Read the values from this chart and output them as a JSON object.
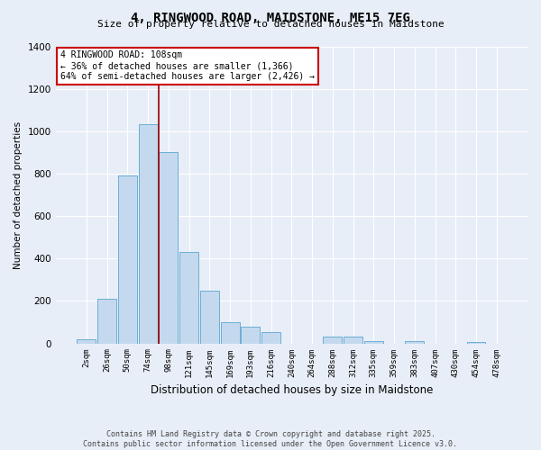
{
  "title": "4, RINGWOOD ROAD, MAIDSTONE, ME15 7EG",
  "subtitle": "Size of property relative to detached houses in Maidstone",
  "xlabel": "Distribution of detached houses by size in Maidstone",
  "ylabel": "Number of detached properties",
  "bar_color": "#c5d9ee",
  "bar_edge_color": "#6aaed6",
  "background_color": "#e8eef7",
  "grid_color": "#ffffff",
  "categories": [
    "2sqm",
    "26sqm",
    "50sqm",
    "74sqm",
    "98sqm",
    "121sqm",
    "145sqm",
    "169sqm",
    "193sqm",
    "216sqm",
    "240sqm",
    "264sqm",
    "288sqm",
    "312sqm",
    "335sqm",
    "359sqm",
    "383sqm",
    "407sqm",
    "430sqm",
    "454sqm",
    "478sqm"
  ],
  "values": [
    20,
    210,
    790,
    1035,
    900,
    430,
    250,
    100,
    80,
    55,
    0,
    0,
    30,
    30,
    10,
    0,
    10,
    0,
    0,
    5,
    0
  ],
  "ylim": [
    0,
    1400
  ],
  "yticks": [
    0,
    200,
    400,
    600,
    800,
    1000,
    1200,
    1400
  ],
  "property_line_x": 3.5,
  "annotation_text": "4 RINGWOOD ROAD: 108sqm\n← 36% of detached houses are smaller (1,366)\n64% of semi-detached houses are larger (2,426) →",
  "annotation_box_color": "#ffffff",
  "annotation_border_color": "#cc0000",
  "property_line_color": "#990000",
  "footer_line1": "Contains HM Land Registry data © Crown copyright and database right 2025.",
  "footer_line2": "Contains public sector information licensed under the Open Government Licence v3.0."
}
